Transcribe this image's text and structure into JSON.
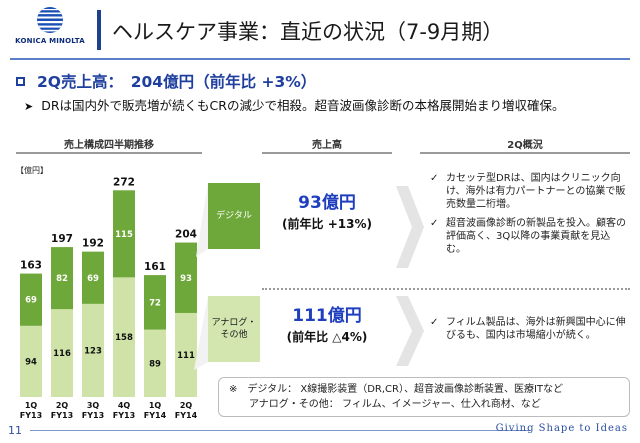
{
  "logo": {
    "text": "KONICA MINOLTA"
  },
  "title": "ヘルスケア事業：直近の状況（7-9月期）",
  "headline": "2Q売上高：　204億円（前年比 +3%）",
  "subline": "DRは国内外で販売増が続くもCRの減少で相殺。超音波画像診断の本格展開始まり増収確保。",
  "columns": {
    "left": "売上構成四半期推移",
    "mid": "売上高",
    "right": "2Q概況"
  },
  "unit": "【億円】",
  "chart_data": {
    "type": "bar",
    "stacked": true,
    "categories": [
      {
        "q": "1Q",
        "fy": "FY13"
      },
      {
        "q": "2Q",
        "fy": "FY13"
      },
      {
        "q": "3Q",
        "fy": "FY13"
      },
      {
        "q": "4Q",
        "fy": "FY13"
      },
      {
        "q": "1Q",
        "fy": "FY14"
      },
      {
        "q": "2Q",
        "fy": "FY14"
      }
    ],
    "series": [
      {
        "name": "アナログ・その他",
        "values": [
          94,
          116,
          123,
          158,
          89,
          111
        ],
        "color": "#cfe3a8"
      },
      {
        "name": "デジタル",
        "values": [
          69,
          82,
          69,
          115,
          72,
          93
        ],
        "color": "#6fa83a"
      }
    ],
    "totals": [
      163,
      197,
      192,
      272,
      161,
      204
    ],
    "ylim": [
      0,
      280
    ]
  },
  "segments": {
    "digital": {
      "label": "デジタル",
      "value": "93億円",
      "yoy": "(前年比 +13%)",
      "bullets": [
        "カセッテ型DRは、国内はクリニック向け、海外は有力パートナーとの協業で販売数量二桁増。",
        "超音波画像診断の新製品を投入。顧客の評価高く、3Q以降の事業貢献を見込む。"
      ]
    },
    "analog": {
      "label_line1": "アナログ・",
      "label_line2": "その他",
      "value": "111億円",
      "yoy": "(前年比 △4%)",
      "bullets": [
        "フィルム製品は、海外は新興国中心に伸びるも、国内は市場縮小が続く。"
      ]
    }
  },
  "note": {
    "line1": "※　デジタル：  X線撮影装置（DR,CR）、超音波画像診断装置、医療ITなど",
    "line2": "　　アナログ・その他：  フィルム、イメージャー、仕入れ商材、など"
  },
  "footer": {
    "page": "11",
    "tagline": "Giving Shape to Ideas"
  },
  "colors": {
    "brand": "#1f3f9f",
    "digital": "#6fa83a",
    "analog": "#cfe3a8",
    "value_blue": "#1f3fbf"
  }
}
